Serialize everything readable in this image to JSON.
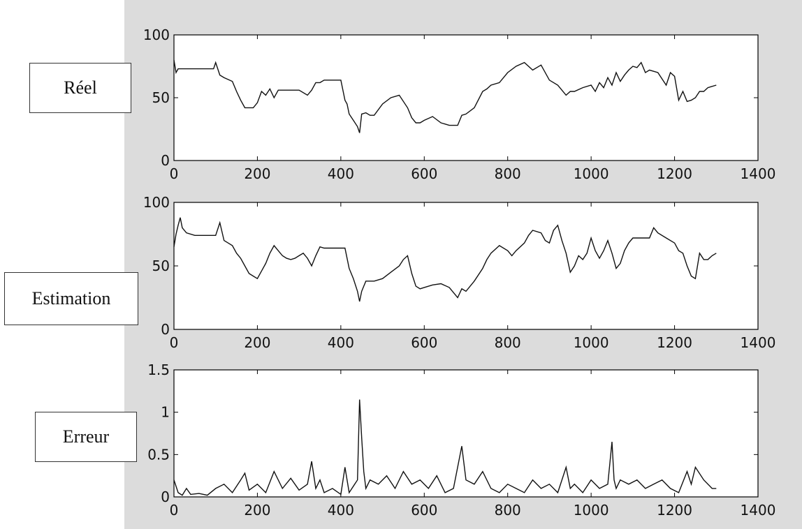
{
  "figure_bg": "#dcdcdc",
  "line_color": "#111111",
  "labels": {
    "reel": "Réel",
    "estimation": "Estimation",
    "erreur": "Erreur"
  },
  "chart_data": [
    {
      "type": "line",
      "series": [
        {
          "x": [
            0,
            5,
            10,
            50,
            95,
            100,
            110,
            120,
            140,
            150,
            160,
            170,
            180,
            190,
            200,
            210,
            220,
            230,
            240,
            250,
            260,
            270,
            280,
            290,
            300,
            320,
            330,
            340,
            350,
            360,
            370,
            380,
            390,
            400,
            410,
            415,
            420,
            430,
            440,
            445,
            450,
            460,
            470,
            480,
            500,
            520,
            540,
            560,
            570,
            580,
            590,
            600,
            620,
            640,
            660,
            680,
            690,
            700,
            720,
            740,
            750,
            760,
            780,
            800,
            820,
            840,
            860,
            880,
            900,
            920,
            940,
            950,
            960,
            980,
            1000,
            1010,
            1020,
            1030,
            1040,
            1050,
            1060,
            1070,
            1080,
            1090,
            1100,
            1110,
            1120,
            1130,
            1140,
            1160,
            1180,
            1190,
            1200,
            1210,
            1220,
            1230,
            1240,
            1250,
            1260,
            1270,
            1280,
            1300
          ],
          "values": [
            80,
            70,
            73,
            73,
            73,
            78,
            68,
            66,
            63,
            55,
            48,
            42,
            42,
            42,
            46,
            55,
            52,
            57,
            50,
            56,
            56,
            56,
            56,
            56,
            56,
            52,
            56,
            62,
            62,
            64,
            64,
            64,
            64,
            64,
            48,
            45,
            37,
            32,
            27,
            22,
            37,
            38,
            36,
            36,
            45,
            50,
            52,
            42,
            34,
            30,
            30,
            32,
            35,
            30,
            28,
            28,
            36,
            37,
            42,
            55,
            57,
            60,
            62,
            70,
            75,
            78,
            72,
            76,
            64,
            60,
            52,
            55,
            55,
            58,
            60,
            55,
            62,
            58,
            66,
            60,
            70,
            63,
            68,
            72,
            75,
            74,
            78,
            70,
            72,
            70,
            60,
            70,
            67,
            48,
            55,
            47,
            48,
            50,
            55,
            55,
            58,
            60
          ]
        }
      ],
      "xlim": [
        0,
        1400
      ],
      "ylim": [
        0,
        100
      ],
      "xticks": [
        0,
        200,
        400,
        600,
        800,
        1000,
        1200,
        1400
      ],
      "yticks": [
        0,
        50,
        100
      ]
    },
    {
      "type": "line",
      "series": [
        {
          "x": [
            0,
            5,
            10,
            15,
            20,
            30,
            50,
            80,
            100,
            110,
            120,
            130,
            140,
            150,
            160,
            170,
            180,
            190,
            200,
            210,
            220,
            230,
            240,
            250,
            260,
            270,
            280,
            290,
            300,
            310,
            320,
            330,
            340,
            350,
            360,
            370,
            380,
            390,
            400,
            410,
            420,
            430,
            440,
            445,
            450,
            460,
            480,
            500,
            520,
            540,
            550,
            560,
            570,
            580,
            590,
            600,
            620,
            640,
            660,
            680,
            690,
            700,
            720,
            740,
            750,
            760,
            780,
            800,
            810,
            820,
            840,
            850,
            860,
            880,
            890,
            900,
            910,
            920,
            930,
            940,
            950,
            960,
            970,
            980,
            990,
            1000,
            1010,
            1020,
            1030,
            1040,
            1050,
            1060,
            1070,
            1080,
            1090,
            1100,
            1120,
            1140,
            1150,
            1160,
            1180,
            1200,
            1210,
            1220,
            1230,
            1240,
            1250,
            1260,
            1270,
            1280,
            1290,
            1300
          ],
          "values": [
            65,
            75,
            82,
            88,
            80,
            76,
            74,
            74,
            74,
            84,
            70,
            68,
            66,
            60,
            56,
            50,
            44,
            42,
            40,
            46,
            52,
            60,
            66,
            62,
            58,
            56,
            55,
            56,
            58,
            60,
            56,
            50,
            58,
            65,
            64,
            64,
            64,
            64,
            64,
            64,
            48,
            40,
            30,
            22,
            30,
            38,
            38,
            40,
            45,
            50,
            55,
            58,
            44,
            34,
            32,
            33,
            35,
            36,
            33,
            25,
            32,
            30,
            38,
            48,
            55,
            60,
            66,
            62,
            58,
            62,
            68,
            74,
            78,
            76,
            70,
            68,
            78,
            82,
            70,
            60,
            45,
            50,
            58,
            55,
            60,
            72,
            62,
            56,
            62,
            70,
            60,
            48,
            52,
            62,
            68,
            72,
            72,
            72,
            80,
            76,
            72,
            68,
            62,
            60,
            50,
            42,
            40,
            60,
            55,
            55,
            58,
            60
          ]
        }
      ],
      "xlim": [
        0,
        1400
      ],
      "ylim": [
        0,
        100
      ],
      "xticks": [
        0,
        200,
        400,
        600,
        800,
        1000,
        1200,
        1400
      ],
      "yticks": [
        0,
        50,
        100
      ]
    },
    {
      "type": "line",
      "series": [
        {
          "x": [
            0,
            10,
            20,
            30,
            40,
            60,
            80,
            100,
            120,
            140,
            160,
            170,
            180,
            200,
            220,
            240,
            260,
            280,
            300,
            320,
            330,
            340,
            350,
            360,
            380,
            400,
            410,
            420,
            440,
            445,
            450,
            455,
            460,
            470,
            490,
            510,
            530,
            550,
            570,
            590,
            610,
            630,
            650,
            670,
            690,
            700,
            720,
            740,
            760,
            780,
            800,
            820,
            840,
            860,
            880,
            900,
            920,
            940,
            950,
            960,
            980,
            1000,
            1020,
            1040,
            1050,
            1055,
            1060,
            1070,
            1090,
            1110,
            1130,
            1150,
            1170,
            1190,
            1210,
            1230,
            1240,
            1250,
            1270,
            1290,
            1300
          ],
          "values": [
            0.2,
            0.05,
            0.02,
            0.1,
            0.03,
            0.04,
            0.02,
            0.1,
            0.15,
            0.05,
            0.2,
            0.28,
            0.08,
            0.15,
            0.05,
            0.3,
            0.1,
            0.22,
            0.08,
            0.15,
            0.42,
            0.1,
            0.2,
            0.05,
            0.1,
            0.03,
            0.35,
            0.05,
            0.2,
            1.15,
            0.7,
            0.3,
            0.1,
            0.2,
            0.15,
            0.25,
            0.1,
            0.3,
            0.15,
            0.2,
            0.1,
            0.25,
            0.05,
            0.1,
            0.6,
            0.2,
            0.15,
            0.3,
            0.1,
            0.05,
            0.15,
            0.1,
            0.05,
            0.2,
            0.1,
            0.15,
            0.05,
            0.35,
            0.1,
            0.15,
            0.05,
            0.2,
            0.1,
            0.15,
            0.65,
            0.2,
            0.1,
            0.2,
            0.15,
            0.2,
            0.1,
            0.15,
            0.2,
            0.1,
            0.05,
            0.3,
            0.15,
            0.35,
            0.2,
            0.1,
            0.1
          ]
        }
      ],
      "xlim": [
        0,
        1400
      ],
      "ylim": [
        0,
        1.5
      ],
      "xticks": [
        0,
        200,
        400,
        600,
        800,
        1000,
        1200,
        1400
      ],
      "yticks": [
        0,
        0.5,
        1,
        1.5
      ],
      "ytick_labels": [
        "0",
        "0.5",
        "1",
        "1.5"
      ]
    }
  ]
}
